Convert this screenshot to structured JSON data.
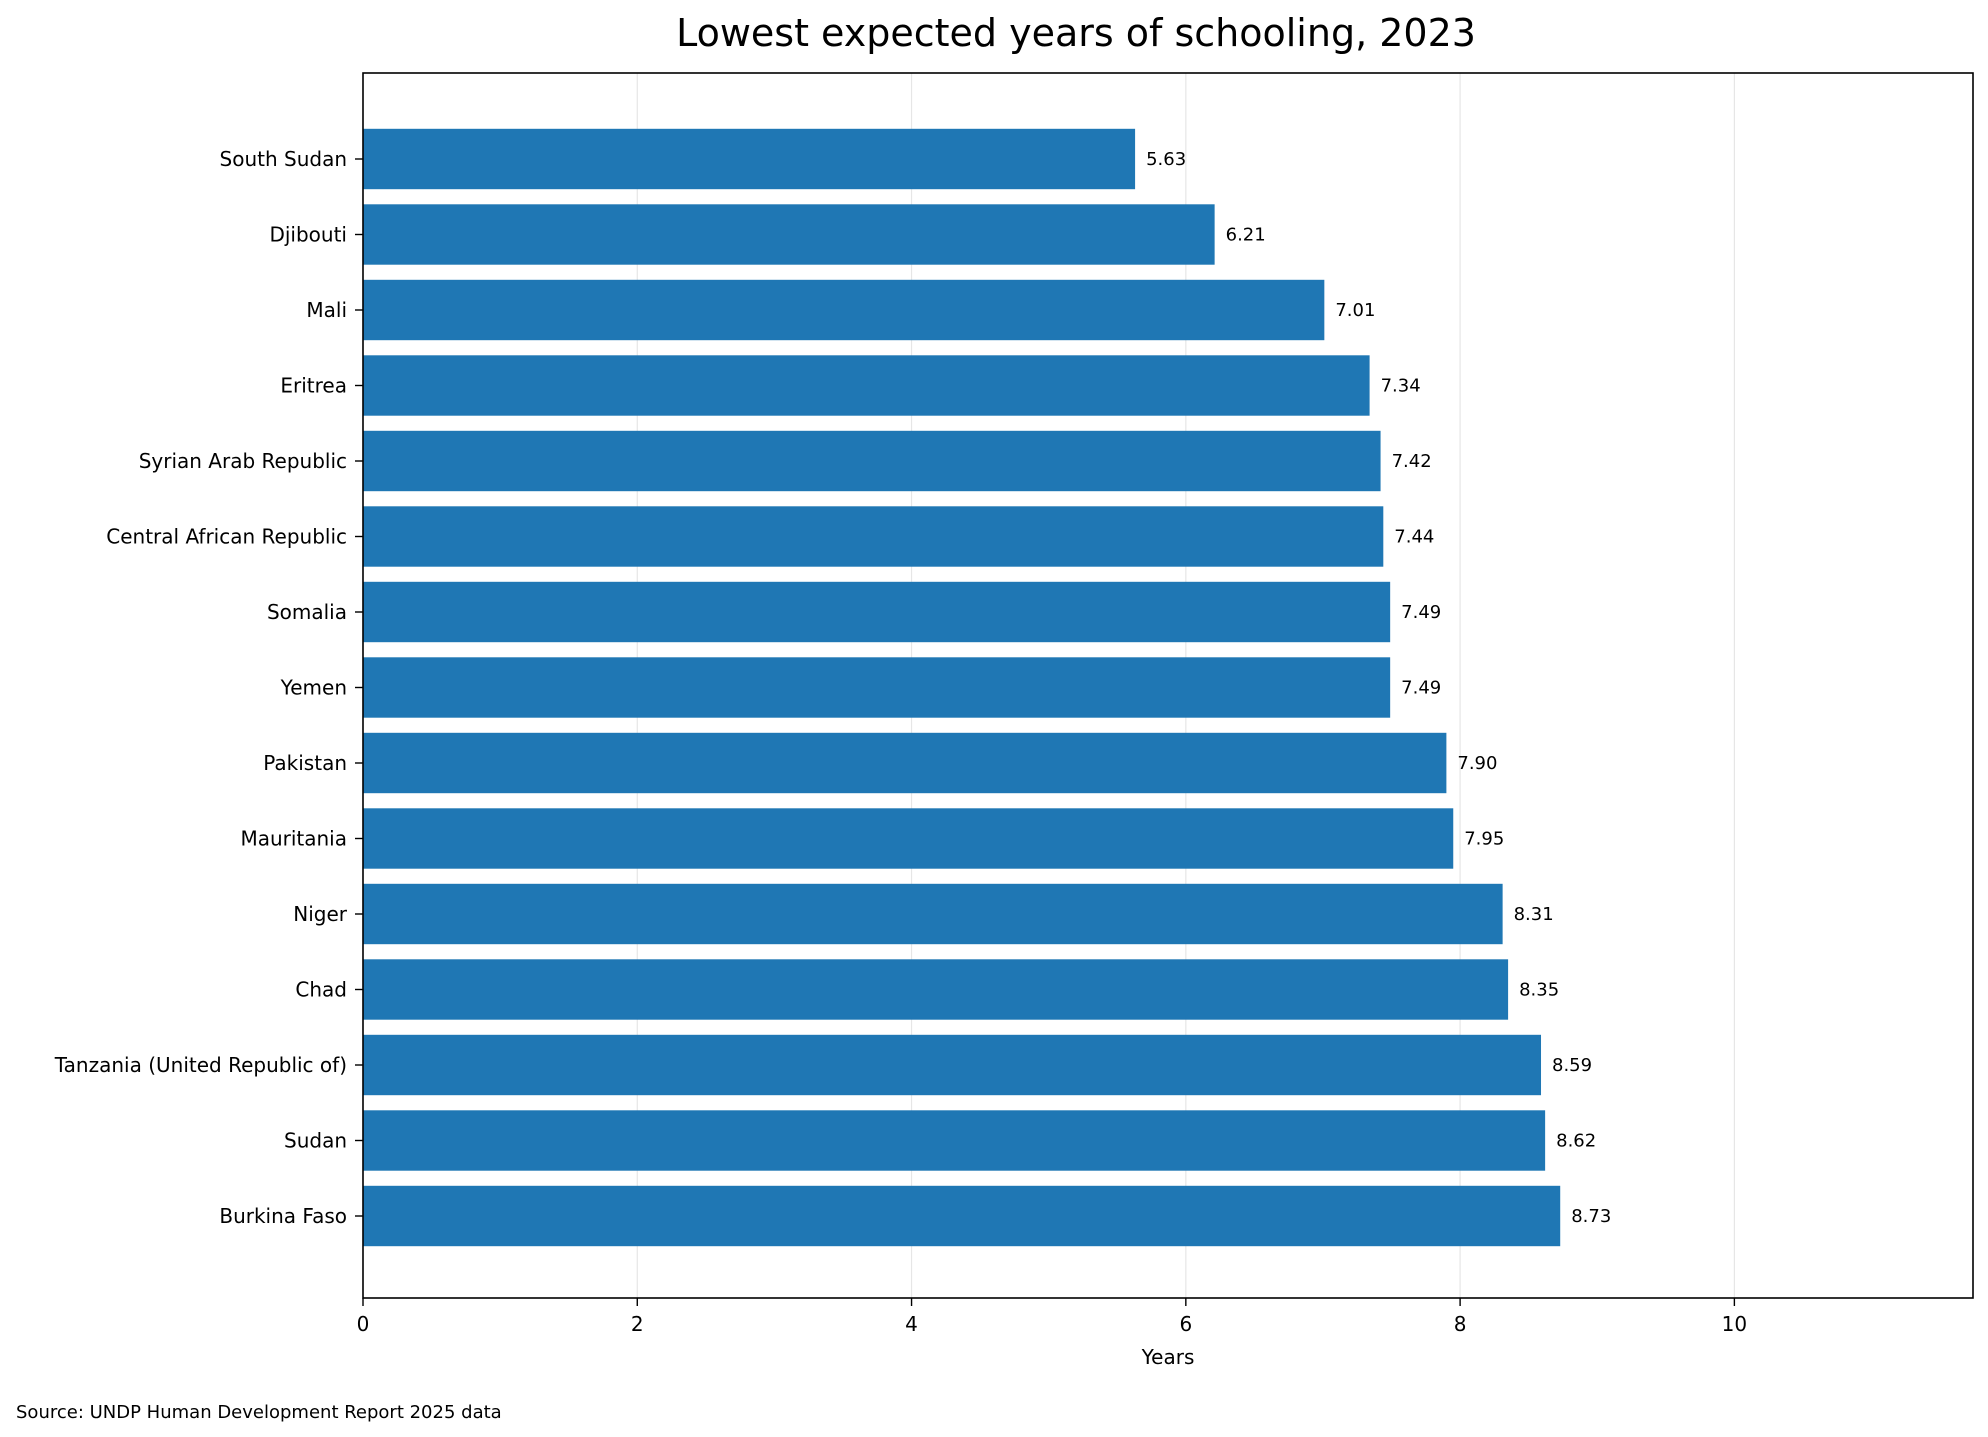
{
  "chart_data": {
    "type": "bar",
    "orientation": "horizontal",
    "title": "Lowest expected years of schooling, 2023",
    "xlabel": "Years",
    "ylabel": "",
    "xlim": [
      0,
      11.74
    ],
    "xticks": [
      0,
      2,
      4,
      6,
      8,
      10
    ],
    "grid": "vertical, light",
    "bar_color": "#1f77b4",
    "categories": [
      "South Sudan",
      "Djibouti",
      "Mali",
      "Eritrea",
      "Syrian Arab Republic",
      "Central African Republic",
      "Somalia",
      "Yemen",
      "Pakistan",
      "Mauritania",
      "Niger",
      "Chad",
      "Tanzania (United Republic of)",
      "Sudan",
      "Burkina Faso"
    ],
    "values": [
      5.63,
      6.21,
      7.01,
      7.34,
      7.42,
      7.44,
      7.49,
      7.49,
      7.9,
      7.95,
      8.31,
      8.35,
      8.59,
      8.62,
      8.73
    ],
    "data_labels": [
      "5.63",
      "6.21",
      "7.01",
      "7.34",
      "7.42",
      "7.44",
      "7.49",
      "7.49",
      "7.90",
      "7.95",
      "8.31",
      "8.35",
      "8.59",
      "8.62",
      "8.73"
    ],
    "source": "Source: UNDP Human Development Report 2025 data"
  }
}
